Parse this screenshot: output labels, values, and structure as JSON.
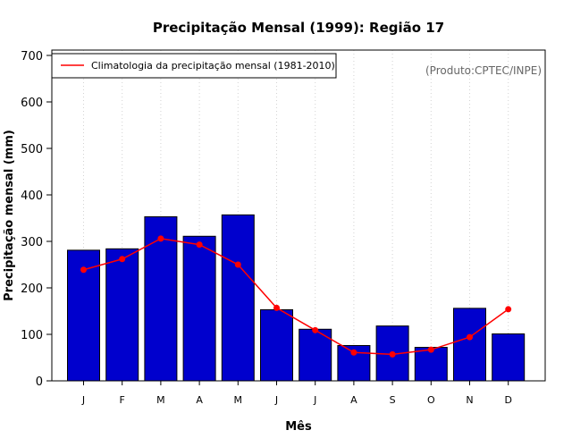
{
  "chart_data": {
    "type": "bar",
    "title": "Precipitação Mensal (1999): Região 17",
    "xlabel": "Mês",
    "ylabel": "Precipitação mensal (mm)",
    "ylim": [
      0,
      700
    ],
    "yticks": [
      0,
      100,
      200,
      300,
      400,
      500,
      600,
      700
    ],
    "grid": "vertical-dotted",
    "categories": [
      "J",
      "F",
      "M",
      "A",
      "M",
      "J",
      "J",
      "A",
      "S",
      "O",
      "N",
      "D"
    ],
    "series": [
      {
        "name": "Precipitação mensal (1999)",
        "type": "bar",
        "color": "#0000CD",
        "values": [
          281,
          284,
          353,
          311,
          357,
          153,
          111,
          76,
          118,
          72,
          156,
          101
        ]
      },
      {
        "name": "Climatologia da precipitação mensal (1981-2010)",
        "type": "line",
        "color": "#FF0000",
        "values": [
          239,
          262,
          306,
          293,
          250,
          157,
          109,
          61,
          57,
          67,
          94,
          154
        ]
      }
    ],
    "legend": {
      "position": "top-left",
      "entries": [
        "Climatologia da precipitação mensal (1981-2010)"
      ]
    },
    "annotation": "(Produto:CPTEC/INPE)"
  }
}
